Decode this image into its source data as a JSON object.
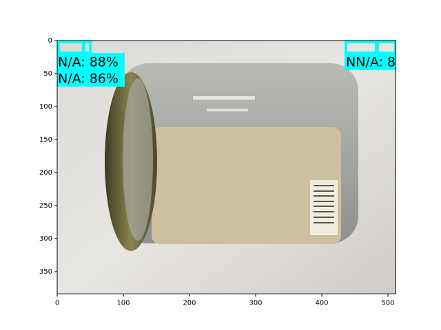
{
  "chart_data": {
    "type": "image",
    "xlim": [
      0,
      512
    ],
    "ylim": [
      384,
      0
    ],
    "xticks": [
      0,
      100,
      200,
      300,
      400,
      500
    ],
    "yticks": [
      0,
      50,
      100,
      150,
      200,
      250,
      300,
      350
    ],
    "annotations": [
      "N/A: 88%",
      "N/A: 86%",
      "NN/A: 8"
    ]
  }
}
